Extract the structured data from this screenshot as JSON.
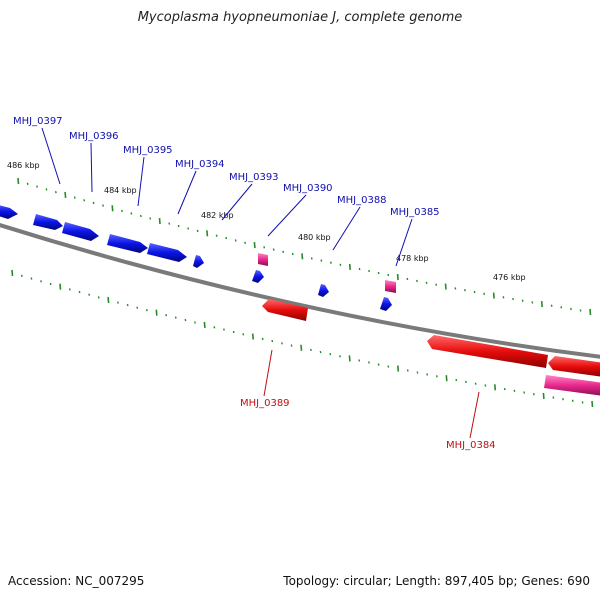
{
  "title": "Mycoplasma hyopneumoniae J, complete genome",
  "footer": {
    "accession": "Accession: NC_007295",
    "summary": "Topology: circular; Length: 897,405 bp; Genes: 690"
  },
  "colors": {
    "forward_gene": "#0a14e6",
    "reverse_gene": "#e60c0c",
    "rna_gene": "#e8288c",
    "backbone": "#808080",
    "tick": "#2a8a2a",
    "forward_label": "#1010b0",
    "reverse_label": "#c01010"
  },
  "scale_labels": [
    {
      "text": "486 kbp",
      "kbp": 486
    },
    {
      "text": "484 kbp",
      "kbp": 484
    },
    {
      "text": "482 kbp",
      "kbp": 482
    },
    {
      "text": "480 kbp",
      "kbp": 480
    },
    {
      "text": "478 kbp",
      "kbp": 478
    },
    {
      "text": "476 kbp",
      "kbp": 476
    }
  ],
  "forward_labels": [
    {
      "text": "MHJ_0397"
    },
    {
      "text": "MHJ_0396"
    },
    {
      "text": "MHJ_0395"
    },
    {
      "text": "MHJ_0394"
    },
    {
      "text": "MHJ_0393"
    },
    {
      "text": "MHJ_0390"
    },
    {
      "text": "MHJ_0388"
    },
    {
      "text": "MHJ_0385"
    }
  ],
  "reverse_labels": [
    {
      "text": "MHJ_0389"
    },
    {
      "text": "MHJ_0384"
    }
  ]
}
